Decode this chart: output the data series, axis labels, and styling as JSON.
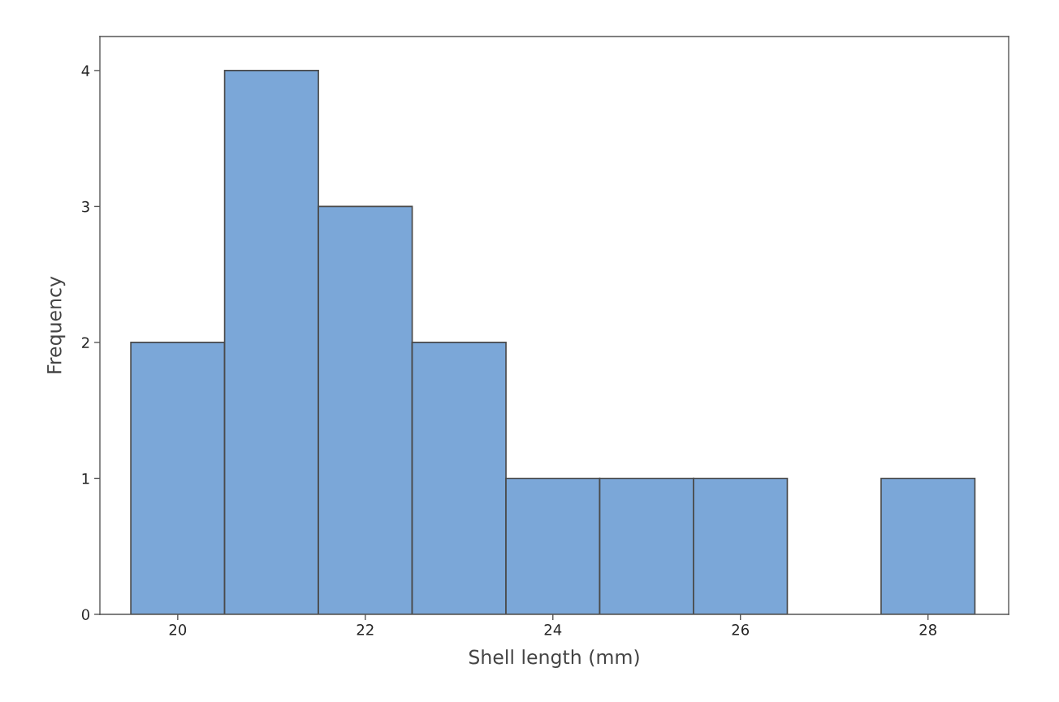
{
  "chart_data": {
    "type": "histogram",
    "xlabel": "Shell length (mm)",
    "ylabel": "Frequency",
    "bins": [
      19.5,
      20.5,
      21.5,
      22.5,
      23.5,
      24.5,
      25.5,
      26.5,
      27.5,
      28.5
    ],
    "values": [
      2,
      4,
      3,
      2,
      1,
      1,
      1,
      0,
      1
    ],
    "color": "#7ba7d8",
    "xlim": [
      19.17,
      28.86
    ],
    "ylim": [
      0,
      4.25
    ],
    "xticks": [
      20,
      22,
      24,
      26,
      28
    ],
    "yticks": [
      0,
      1,
      2,
      3,
      4
    ],
    "grid": false,
    "legend": false
  }
}
